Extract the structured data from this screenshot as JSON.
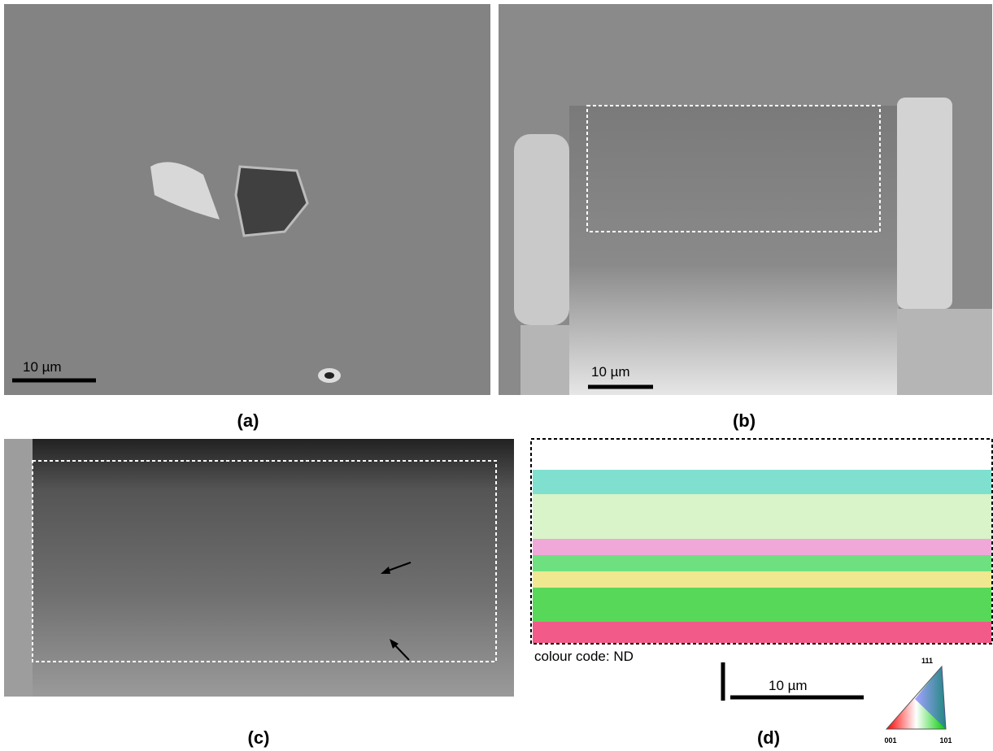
{
  "panels": [
    {
      "label": "(a)",
      "scale_bar": "10 µm"
    },
    {
      "label": "(b)",
      "scale_bar": "10 µm"
    },
    {
      "label": "(c)"
    },
    {
      "label": "(d)",
      "scale_bar": "10 µm",
      "colour_code": "colour code: ND",
      "ipf_triangle": {
        "top": "111",
        "bottom_left": "001",
        "bottom_right": "101"
      }
    }
  ]
}
